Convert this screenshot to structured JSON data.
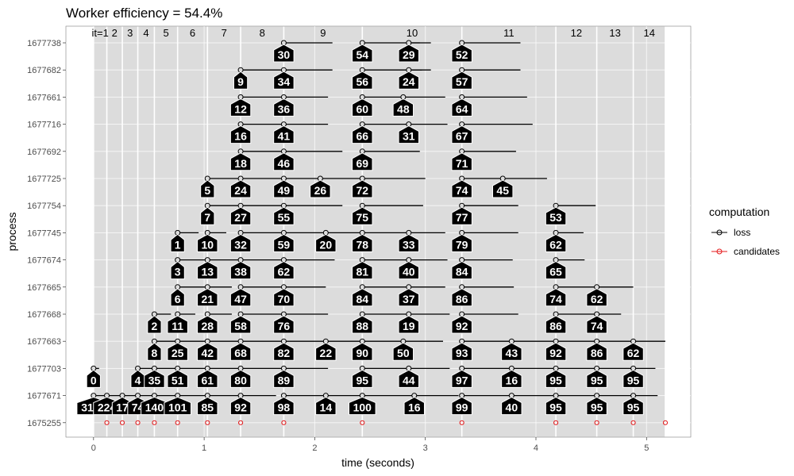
{
  "chart_data": {
    "type": "timeline",
    "title": "Worker efficiency = 54.4%",
    "xlabel": "time (seconds)",
    "ylabel": "process",
    "xlim": [
      -0.25,
      5.4
    ],
    "xticks": [
      0,
      1,
      2,
      3,
      4,
      5
    ],
    "processes": [
      "1677738",
      "1677682",
      "1677661",
      "1677716",
      "1677692",
      "1677725",
      "1677754",
      "1677745",
      "1677674",
      "1677665",
      "1677668",
      "1677663",
      "1677703",
      "1677671",
      "1675255"
    ],
    "iterations": [
      {
        "label": "it=1",
        "start": 0.0,
        "end": 0.12
      },
      {
        "label": "2",
        "start": 0.12,
        "end": 0.26
      },
      {
        "label": "3",
        "start": 0.26,
        "end": 0.4
      },
      {
        "label": "4",
        "start": 0.4,
        "end": 0.55
      },
      {
        "label": "5",
        "start": 0.55,
        "end": 0.76
      },
      {
        "label": "6",
        "start": 0.76,
        "end": 1.03
      },
      {
        "label": "7",
        "start": 1.03,
        "end": 1.33
      },
      {
        "label": "8",
        "start": 1.33,
        "end": 1.72
      },
      {
        "label": "9",
        "start": 1.72,
        "end": 2.43
      },
      {
        "label": "10",
        "start": 2.43,
        "end": 3.33
      },
      {
        "label": "11",
        "start": 3.33,
        "end": 4.18
      },
      {
        "label": "12",
        "start": 4.18,
        "end": 4.55
      },
      {
        "label": "13",
        "start": 4.55,
        "end": 4.88
      },
      {
        "label": "14",
        "start": 4.88,
        "end": 5.17
      }
    ],
    "legend": {
      "title": "computation",
      "position": "right",
      "items": [
        {
          "label": "loss",
          "color": "#000000"
        },
        {
          "label": "candidates",
          "color": "#e41a1c"
        }
      ]
    },
    "loss_events": [
      {
        "process": "1677738",
        "start": 1.72,
        "end": 2.16,
        "label": "30"
      },
      {
        "process": "1677738",
        "start": 2.43,
        "end": 2.95,
        "label": "54"
      },
      {
        "process": "1677738",
        "start": 2.85,
        "end": 3.05,
        "label": "29"
      },
      {
        "process": "1677738",
        "start": 3.33,
        "end": 3.86,
        "label": "52"
      },
      {
        "process": "1677682",
        "start": 1.33,
        "end": 1.72,
        "label": "9"
      },
      {
        "process": "1677682",
        "start": 1.72,
        "end": 2.16,
        "label": "34"
      },
      {
        "process": "1677682",
        "start": 2.43,
        "end": 2.97,
        "label": "56"
      },
      {
        "process": "1677682",
        "start": 2.85,
        "end": 3.05,
        "label": "24"
      },
      {
        "process": "1677682",
        "start": 3.33,
        "end": 3.86,
        "label": "57"
      },
      {
        "process": "1677661",
        "start": 1.33,
        "end": 1.72,
        "label": "12"
      },
      {
        "process": "1677661",
        "start": 1.72,
        "end": 2.12,
        "label": "36"
      },
      {
        "process": "1677661",
        "start": 2.43,
        "end": 2.8,
        "label": "60"
      },
      {
        "process": "1677661",
        "start": 2.8,
        "end": 3.18,
        "label": "48"
      },
      {
        "process": "1677661",
        "start": 3.33,
        "end": 3.92,
        "label": "64"
      },
      {
        "process": "1677716",
        "start": 1.33,
        "end": 1.72,
        "label": "16"
      },
      {
        "process": "1677716",
        "start": 1.72,
        "end": 2.12,
        "label": "41"
      },
      {
        "process": "1677716",
        "start": 2.43,
        "end": 2.85,
        "label": "66"
      },
      {
        "process": "1677716",
        "start": 2.85,
        "end": 3.2,
        "label": "31"
      },
      {
        "process": "1677716",
        "start": 3.33,
        "end": 3.97,
        "label": "67"
      },
      {
        "process": "1677692",
        "start": 1.33,
        "end": 1.72,
        "label": "18"
      },
      {
        "process": "1677692",
        "start": 1.72,
        "end": 2.25,
        "label": "46"
      },
      {
        "process": "1677692",
        "start": 2.43,
        "end": 2.95,
        "label": "69"
      },
      {
        "process": "1677692",
        "start": 3.33,
        "end": 3.82,
        "label": "71"
      },
      {
        "process": "1677725",
        "start": 1.03,
        "end": 1.33,
        "label": "5"
      },
      {
        "process": "1677725",
        "start": 1.33,
        "end": 1.72,
        "label": "24"
      },
      {
        "process": "1677725",
        "start": 1.72,
        "end": 2.05,
        "label": "49"
      },
      {
        "process": "1677725",
        "start": 2.05,
        "end": 2.43,
        "label": "26"
      },
      {
        "process": "1677725",
        "start": 2.43,
        "end": 3.0,
        "label": "72"
      },
      {
        "process": "1677725",
        "start": 3.33,
        "end": 3.7,
        "label": "74"
      },
      {
        "process": "1677725",
        "start": 3.7,
        "end": 4.1,
        "label": "45"
      },
      {
        "process": "1677754",
        "start": 1.03,
        "end": 1.33,
        "label": "7"
      },
      {
        "process": "1677754",
        "start": 1.33,
        "end": 1.72,
        "label": "27"
      },
      {
        "process": "1677754",
        "start": 1.72,
        "end": 2.25,
        "label": "55"
      },
      {
        "process": "1677754",
        "start": 2.43,
        "end": 2.98,
        "label": "75"
      },
      {
        "process": "1677754",
        "start": 3.33,
        "end": 3.84,
        "label": "77"
      },
      {
        "process": "1677754",
        "start": 4.18,
        "end": 4.54,
        "label": "53"
      },
      {
        "process": "1677745",
        "start": 0.76,
        "end": 0.95,
        "label": "1"
      },
      {
        "process": "1677745",
        "start": 1.03,
        "end": 1.2,
        "label": "10"
      },
      {
        "process": "1677745",
        "start": 1.33,
        "end": 1.72,
        "label": "32"
      },
      {
        "process": "1677745",
        "start": 1.72,
        "end": 2.1,
        "label": "59"
      },
      {
        "process": "1677745",
        "start": 2.1,
        "end": 2.43,
        "label": "20"
      },
      {
        "process": "1677745",
        "start": 2.43,
        "end": 2.85,
        "label": "78"
      },
      {
        "process": "1677745",
        "start": 2.85,
        "end": 3.18,
        "label": "33"
      },
      {
        "process": "1677745",
        "start": 3.33,
        "end": 3.84,
        "label": "79"
      },
      {
        "process": "1677745",
        "start": 4.18,
        "end": 4.43,
        "label": "62"
      },
      {
        "process": "1677674",
        "start": 0.76,
        "end": 1.03,
        "label": "3"
      },
      {
        "process": "1677674",
        "start": 1.03,
        "end": 1.33,
        "label": "13"
      },
      {
        "process": "1677674",
        "start": 1.33,
        "end": 1.72,
        "label": "38"
      },
      {
        "process": "1677674",
        "start": 1.72,
        "end": 2.18,
        "label": "62"
      },
      {
        "process": "1677674",
        "start": 2.43,
        "end": 2.85,
        "label": "81"
      },
      {
        "process": "1677674",
        "start": 2.85,
        "end": 3.2,
        "label": "40"
      },
      {
        "process": "1677674",
        "start": 3.33,
        "end": 3.79,
        "label": "84"
      },
      {
        "process": "1677674",
        "start": 4.18,
        "end": 4.44,
        "label": "65"
      },
      {
        "process": "1677665",
        "start": 0.76,
        "end": 1.03,
        "label": "6"
      },
      {
        "process": "1677665",
        "start": 1.03,
        "end": 1.25,
        "label": "21"
      },
      {
        "process": "1677665",
        "start": 1.33,
        "end": 1.72,
        "label": "47"
      },
      {
        "process": "1677665",
        "start": 1.72,
        "end": 2.1,
        "label": "70"
      },
      {
        "process": "1677665",
        "start": 2.43,
        "end": 2.85,
        "label": "84"
      },
      {
        "process": "1677665",
        "start": 2.85,
        "end": 3.18,
        "label": "37"
      },
      {
        "process": "1677665",
        "start": 3.33,
        "end": 3.8,
        "label": "86"
      },
      {
        "process": "1677665",
        "start": 4.18,
        "end": 4.55,
        "label": "74"
      },
      {
        "process": "1677665",
        "start": 4.55,
        "end": 4.88,
        "label": "62"
      },
      {
        "process": "1677668",
        "start": 0.55,
        "end": 0.7,
        "label": "2"
      },
      {
        "process": "1677668",
        "start": 0.76,
        "end": 0.92,
        "label": "11"
      },
      {
        "process": "1677668",
        "start": 1.03,
        "end": 1.25,
        "label": "28"
      },
      {
        "process": "1677668",
        "start": 1.33,
        "end": 1.72,
        "label": "58"
      },
      {
        "process": "1677668",
        "start": 1.72,
        "end": 2.12,
        "label": "76"
      },
      {
        "process": "1677668",
        "start": 2.43,
        "end": 2.85,
        "label": "88"
      },
      {
        "process": "1677668",
        "start": 2.85,
        "end": 3.22,
        "label": "19"
      },
      {
        "process": "1677668",
        "start": 3.33,
        "end": 3.84,
        "label": "92"
      },
      {
        "process": "1677668",
        "start": 4.18,
        "end": 4.55,
        "label": "86"
      },
      {
        "process": "1677668",
        "start": 4.55,
        "end": 4.77,
        "label": "74"
      },
      {
        "process": "1677663",
        "start": 0.55,
        "end": 0.76,
        "label": "8"
      },
      {
        "process": "1677663",
        "start": 0.76,
        "end": 1.03,
        "label": "25"
      },
      {
        "process": "1677663",
        "start": 1.03,
        "end": 1.33,
        "label": "42"
      },
      {
        "process": "1677663",
        "start": 1.33,
        "end": 1.72,
        "label": "68"
      },
      {
        "process": "1677663",
        "start": 1.72,
        "end": 2.1,
        "label": "82"
      },
      {
        "process": "1677663",
        "start": 2.1,
        "end": 2.43,
        "label": "22"
      },
      {
        "process": "1677663",
        "start": 2.43,
        "end": 2.8,
        "label": "90"
      },
      {
        "process": "1677663",
        "start": 2.8,
        "end": 3.16,
        "label": "50"
      },
      {
        "process": "1677663",
        "start": 3.33,
        "end": 3.78,
        "label": "93"
      },
      {
        "process": "1677663",
        "start": 3.78,
        "end": 4.18,
        "label": "43"
      },
      {
        "process": "1677663",
        "start": 4.18,
        "end": 4.55,
        "label": "92"
      },
      {
        "process": "1677663",
        "start": 4.55,
        "end": 4.88,
        "label": "86"
      },
      {
        "process": "1677663",
        "start": 4.88,
        "end": 5.17,
        "label": "62"
      },
      {
        "process": "1677703",
        "start": 0.0,
        "end": 0.05,
        "label": "0"
      },
      {
        "process": "1677703",
        "start": 0.4,
        "end": 0.55,
        "label": "4"
      },
      {
        "process": "1677703",
        "start": 0.55,
        "end": 0.76,
        "label": "35"
      },
      {
        "process": "1677703",
        "start": 0.76,
        "end": 1.03,
        "label": "51"
      },
      {
        "process": "1677703",
        "start": 1.03,
        "end": 1.33,
        "label": "61"
      },
      {
        "process": "1677703",
        "start": 1.33,
        "end": 1.72,
        "label": "80"
      },
      {
        "process": "1677703",
        "start": 1.72,
        "end": 2.12,
        "label": "89"
      },
      {
        "process": "1677703",
        "start": 2.43,
        "end": 2.85,
        "label": "95"
      },
      {
        "process": "1677703",
        "start": 2.85,
        "end": 3.22,
        "label": "44"
      },
      {
        "process": "1677703",
        "start": 3.33,
        "end": 3.78,
        "label": "97"
      },
      {
        "process": "1677703",
        "start": 3.78,
        "end": 4.18,
        "label": "16"
      },
      {
        "process": "1677703",
        "start": 4.18,
        "end": 4.55,
        "label": "95"
      },
      {
        "process": "1677703",
        "start": 4.55,
        "end": 4.88,
        "label": "95"
      },
      {
        "process": "1677703",
        "start": 4.88,
        "end": 5.08,
        "label": "95"
      },
      {
        "process": "1677671",
        "start": 0.0,
        "end": 0.12,
        "label": "3199"
      },
      {
        "process": "1677671",
        "start": 0.12,
        "end": 0.26,
        "label": "224"
      },
      {
        "process": "1677671",
        "start": 0.26,
        "end": 0.4,
        "label": "17"
      },
      {
        "process": "1677671",
        "start": 0.4,
        "end": 0.55,
        "label": "74"
      },
      {
        "process": "1677671",
        "start": 0.55,
        "end": 0.76,
        "label": "140"
      },
      {
        "process": "1677671",
        "start": 0.76,
        "end": 1.03,
        "label": "101"
      },
      {
        "process": "1677671",
        "start": 1.03,
        "end": 1.33,
        "label": "85"
      },
      {
        "process": "1677671",
        "start": 1.33,
        "end": 1.65,
        "label": "92"
      },
      {
        "process": "1677671",
        "start": 1.72,
        "end": 2.1,
        "label": "98"
      },
      {
        "process": "1677671",
        "start": 2.1,
        "end": 2.43,
        "label": "14"
      },
      {
        "process": "1677671",
        "start": 2.43,
        "end": 2.9,
        "label": "100"
      },
      {
        "process": "1677671",
        "start": 2.9,
        "end": 3.3,
        "label": "16"
      },
      {
        "process": "1677671",
        "start": 3.33,
        "end": 3.78,
        "label": "99"
      },
      {
        "process": "1677671",
        "start": 3.78,
        "end": 4.18,
        "label": "40"
      },
      {
        "process": "1677671",
        "start": 4.18,
        "end": 4.55,
        "label": "95"
      },
      {
        "process": "1677671",
        "start": 4.55,
        "end": 4.88,
        "label": "95"
      },
      {
        "process": "1677671",
        "start": 4.88,
        "end": 5.1,
        "label": "95"
      }
    ],
    "candidate_events": [
      0.12,
      0.26,
      0.4,
      0.55,
      0.76,
      1.03,
      1.33,
      1.72,
      2.43,
      3.33,
      4.18,
      4.55,
      4.88,
      5.17
    ],
    "candidate_process": "1675255"
  }
}
